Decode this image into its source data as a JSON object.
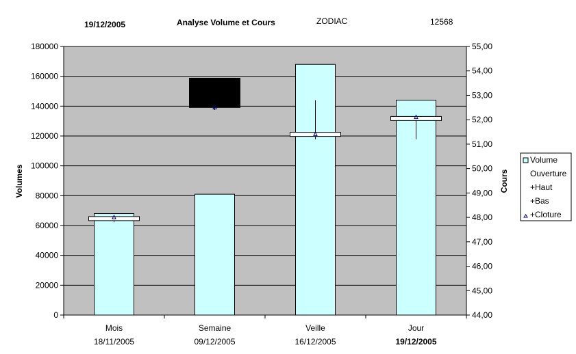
{
  "header": {
    "date": "19/12/2005",
    "title": "Analyse Volume et Cours",
    "ticker": "ZODIAC",
    "code": "12568"
  },
  "chart_data": {
    "type": "bar",
    "categories": [
      "Mois",
      "Semaine",
      "Veille",
      "Jour"
    ],
    "category_dates": [
      "18/11/2005",
      "09/12/2005",
      "16/12/2005",
      "19/12/2005"
    ],
    "bold_category_date_index": 3,
    "ylabel_left": "Volumes",
    "ylabel_right": "Cours",
    "ylim_left": [
      0,
      180000
    ],
    "ylim_right": [
      44,
      55
    ],
    "yticks_left": [
      "0",
      "20000",
      "40000",
      "60000",
      "80000",
      "100000",
      "120000",
      "140000",
      "160000",
      "180000"
    ],
    "yticks_right": [
      "44,00",
      "45,00",
      "46,00",
      "47,00",
      "48,00",
      "49,00",
      "50,00",
      "51,00",
      "52,00",
      "53,00",
      "54,00",
      "55,00"
    ],
    "grid": true,
    "legend_position": "right",
    "series": [
      {
        "name": "Volume",
        "axis": "left",
        "color": "#ccffff",
        "values": [
          68000,
          81000,
          168000,
          144000
        ]
      }
    ],
    "ohlc": {
      "axis": "right",
      "series_names": [
        "Ouverture",
        "+Haut",
        "+Bas",
        "+Cloture"
      ],
      "open": [
        47.9,
        53.7,
        51.4,
        52.0
      ],
      "high": [
        48.1,
        53.7,
        52.8,
        52.1
      ],
      "low": [
        47.8,
        52.4,
        51.2,
        51.2
      ],
      "close": [
        48.0,
        52.5,
        51.4,
        52.1
      ],
      "candle_up_color": "#ffffff",
      "candle_down_color": "#000000"
    },
    "legend": [
      "Volume",
      "Ouverture",
      "+Haut",
      "+Bas",
      "+Cloture"
    ]
  }
}
